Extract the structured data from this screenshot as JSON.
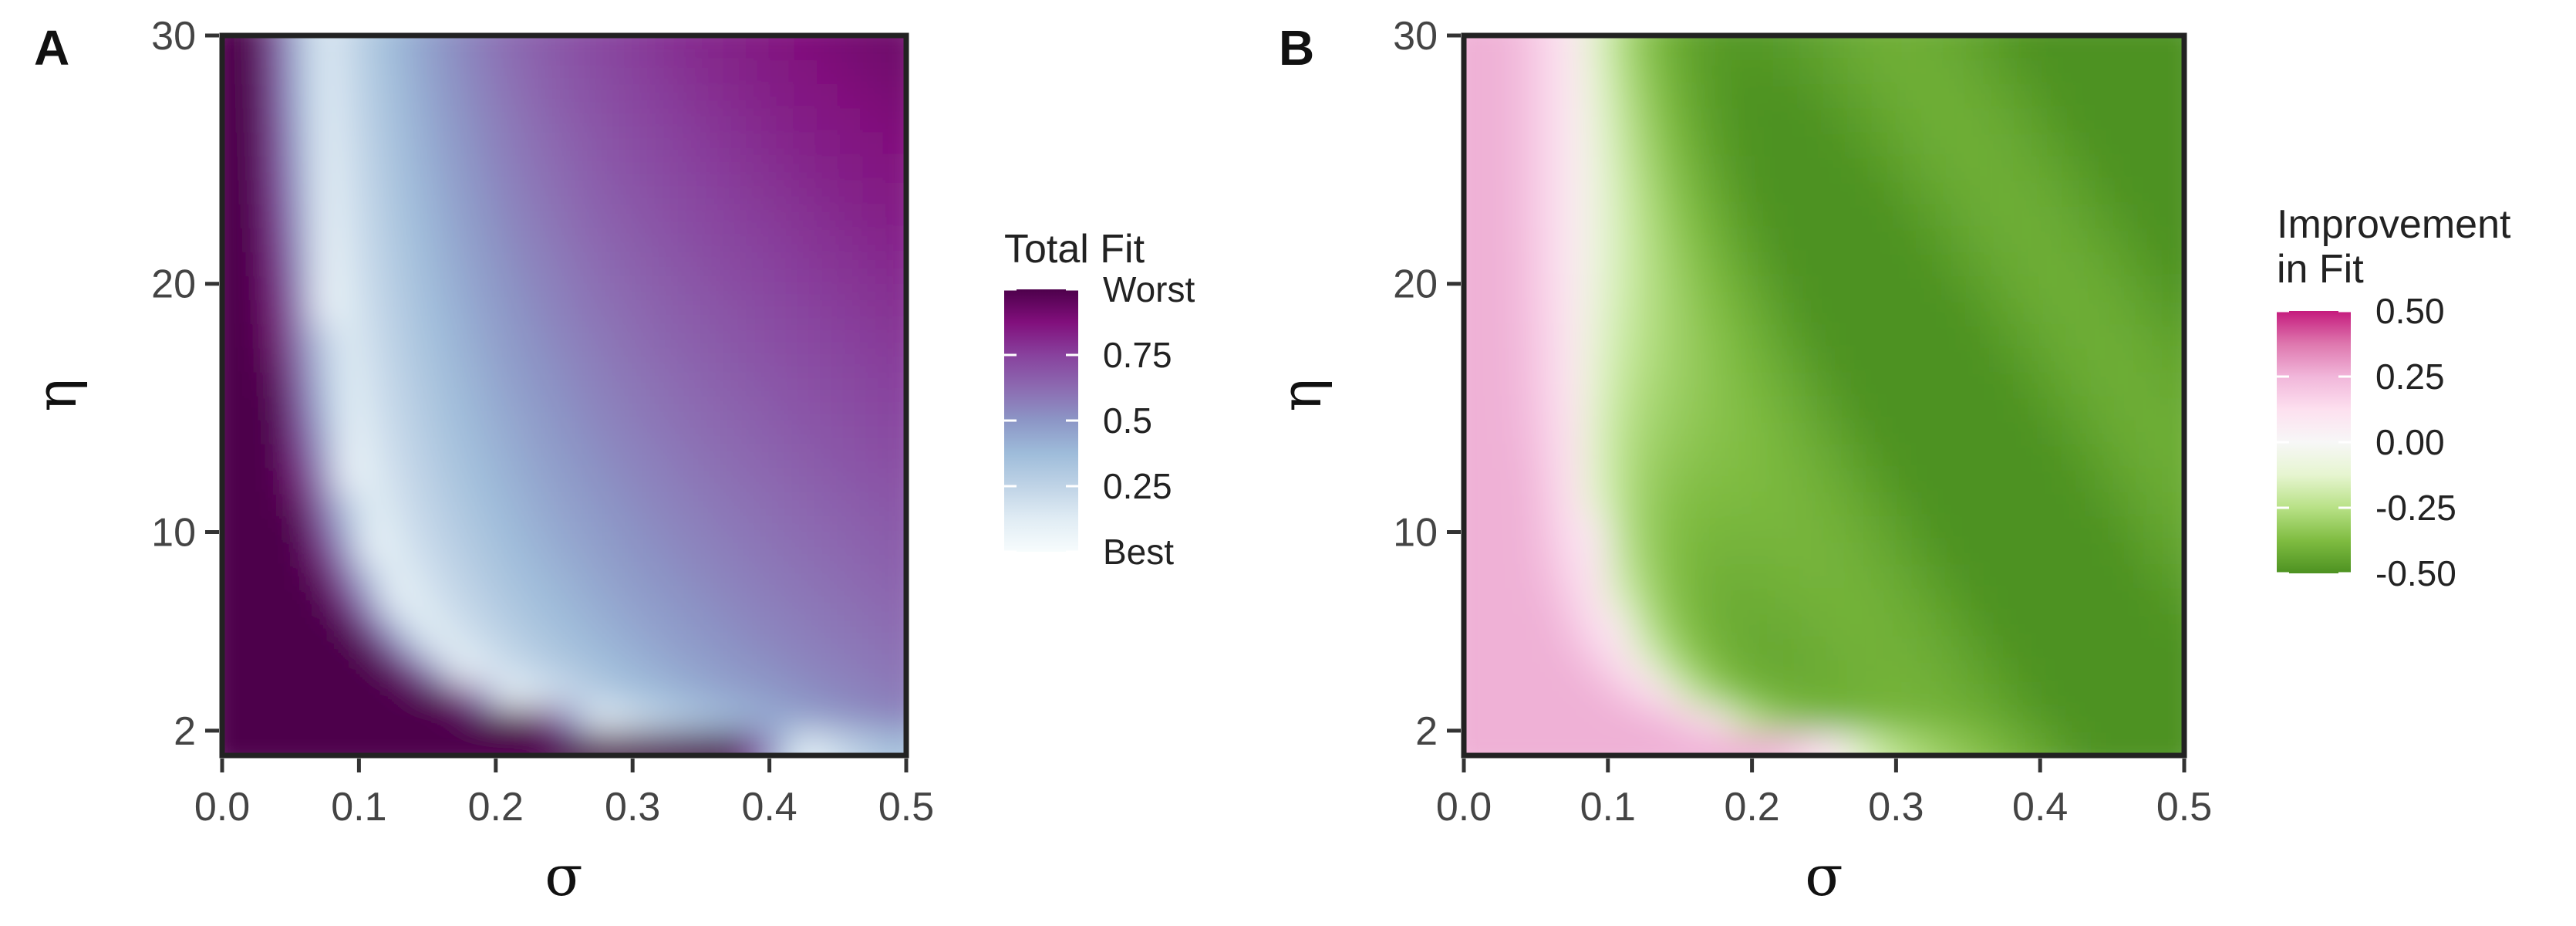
{
  "chart_data": [
    {
      "type": "heatmap",
      "panel": "A",
      "xlabel": "σ",
      "ylabel": "η",
      "xlim": [
        0.0,
        0.5
      ],
      "ylim": [
        1.0,
        30.0
      ],
      "x_ticks": [
        "0.0",
        "0.1",
        "0.2",
        "0.3",
        "0.4",
        "0.5"
      ],
      "y_ticks": [
        "2",
        "10",
        "20",
        "30"
      ],
      "y_tick_values": [
        2,
        10,
        20,
        30
      ],
      "x_tick_values": [
        0.0,
        0.1,
        0.2,
        0.3,
        0.4,
        0.5
      ],
      "grid": false,
      "legend": {
        "title": "Total Fit",
        "placement": "right",
        "labels": [
          "Worst",
          "0.75",
          "0.5",
          "0.25",
          "Best"
        ],
        "range": [
          0.0,
          1.0
        ],
        "colors": [
          "#f7fcfd",
          "#e0ecf4",
          "#bfd3e6",
          "#9ebcda",
          "#8c96c6",
          "#8c6bb1",
          "#88419d",
          "#810f7c",
          "#4d004b"
        ]
      }
    },
    {
      "type": "heatmap",
      "panel": "B",
      "xlabel": "σ",
      "ylabel": "η",
      "xlim": [
        0.0,
        0.5
      ],
      "ylim": [
        1.0,
        30.0
      ],
      "x_ticks": [
        "0.0",
        "0.1",
        "0.2",
        "0.3",
        "0.4",
        "0.5"
      ],
      "y_ticks": [
        "2",
        "10",
        "20",
        "30"
      ],
      "y_tick_values": [
        2,
        10,
        20,
        30
      ],
      "x_tick_values": [
        0.0,
        0.1,
        0.2,
        0.3,
        0.4,
        0.5
      ],
      "grid": false,
      "legend": {
        "title_lines": [
          "Improvement",
          "in Fit"
        ],
        "placement": "right",
        "labels": [
          "0.50",
          "0.25",
          "0.00",
          "-0.25",
          "-0.50"
        ],
        "range": [
          -0.5,
          0.5
        ],
        "colors": [
          "#4d9221",
          "#7fbc41",
          "#b8e186",
          "#e6f5d0",
          "#f7f7f7",
          "#fde0ef",
          "#f1b6da",
          "#de77ae",
          "#c51b7d"
        ]
      }
    }
  ]
}
